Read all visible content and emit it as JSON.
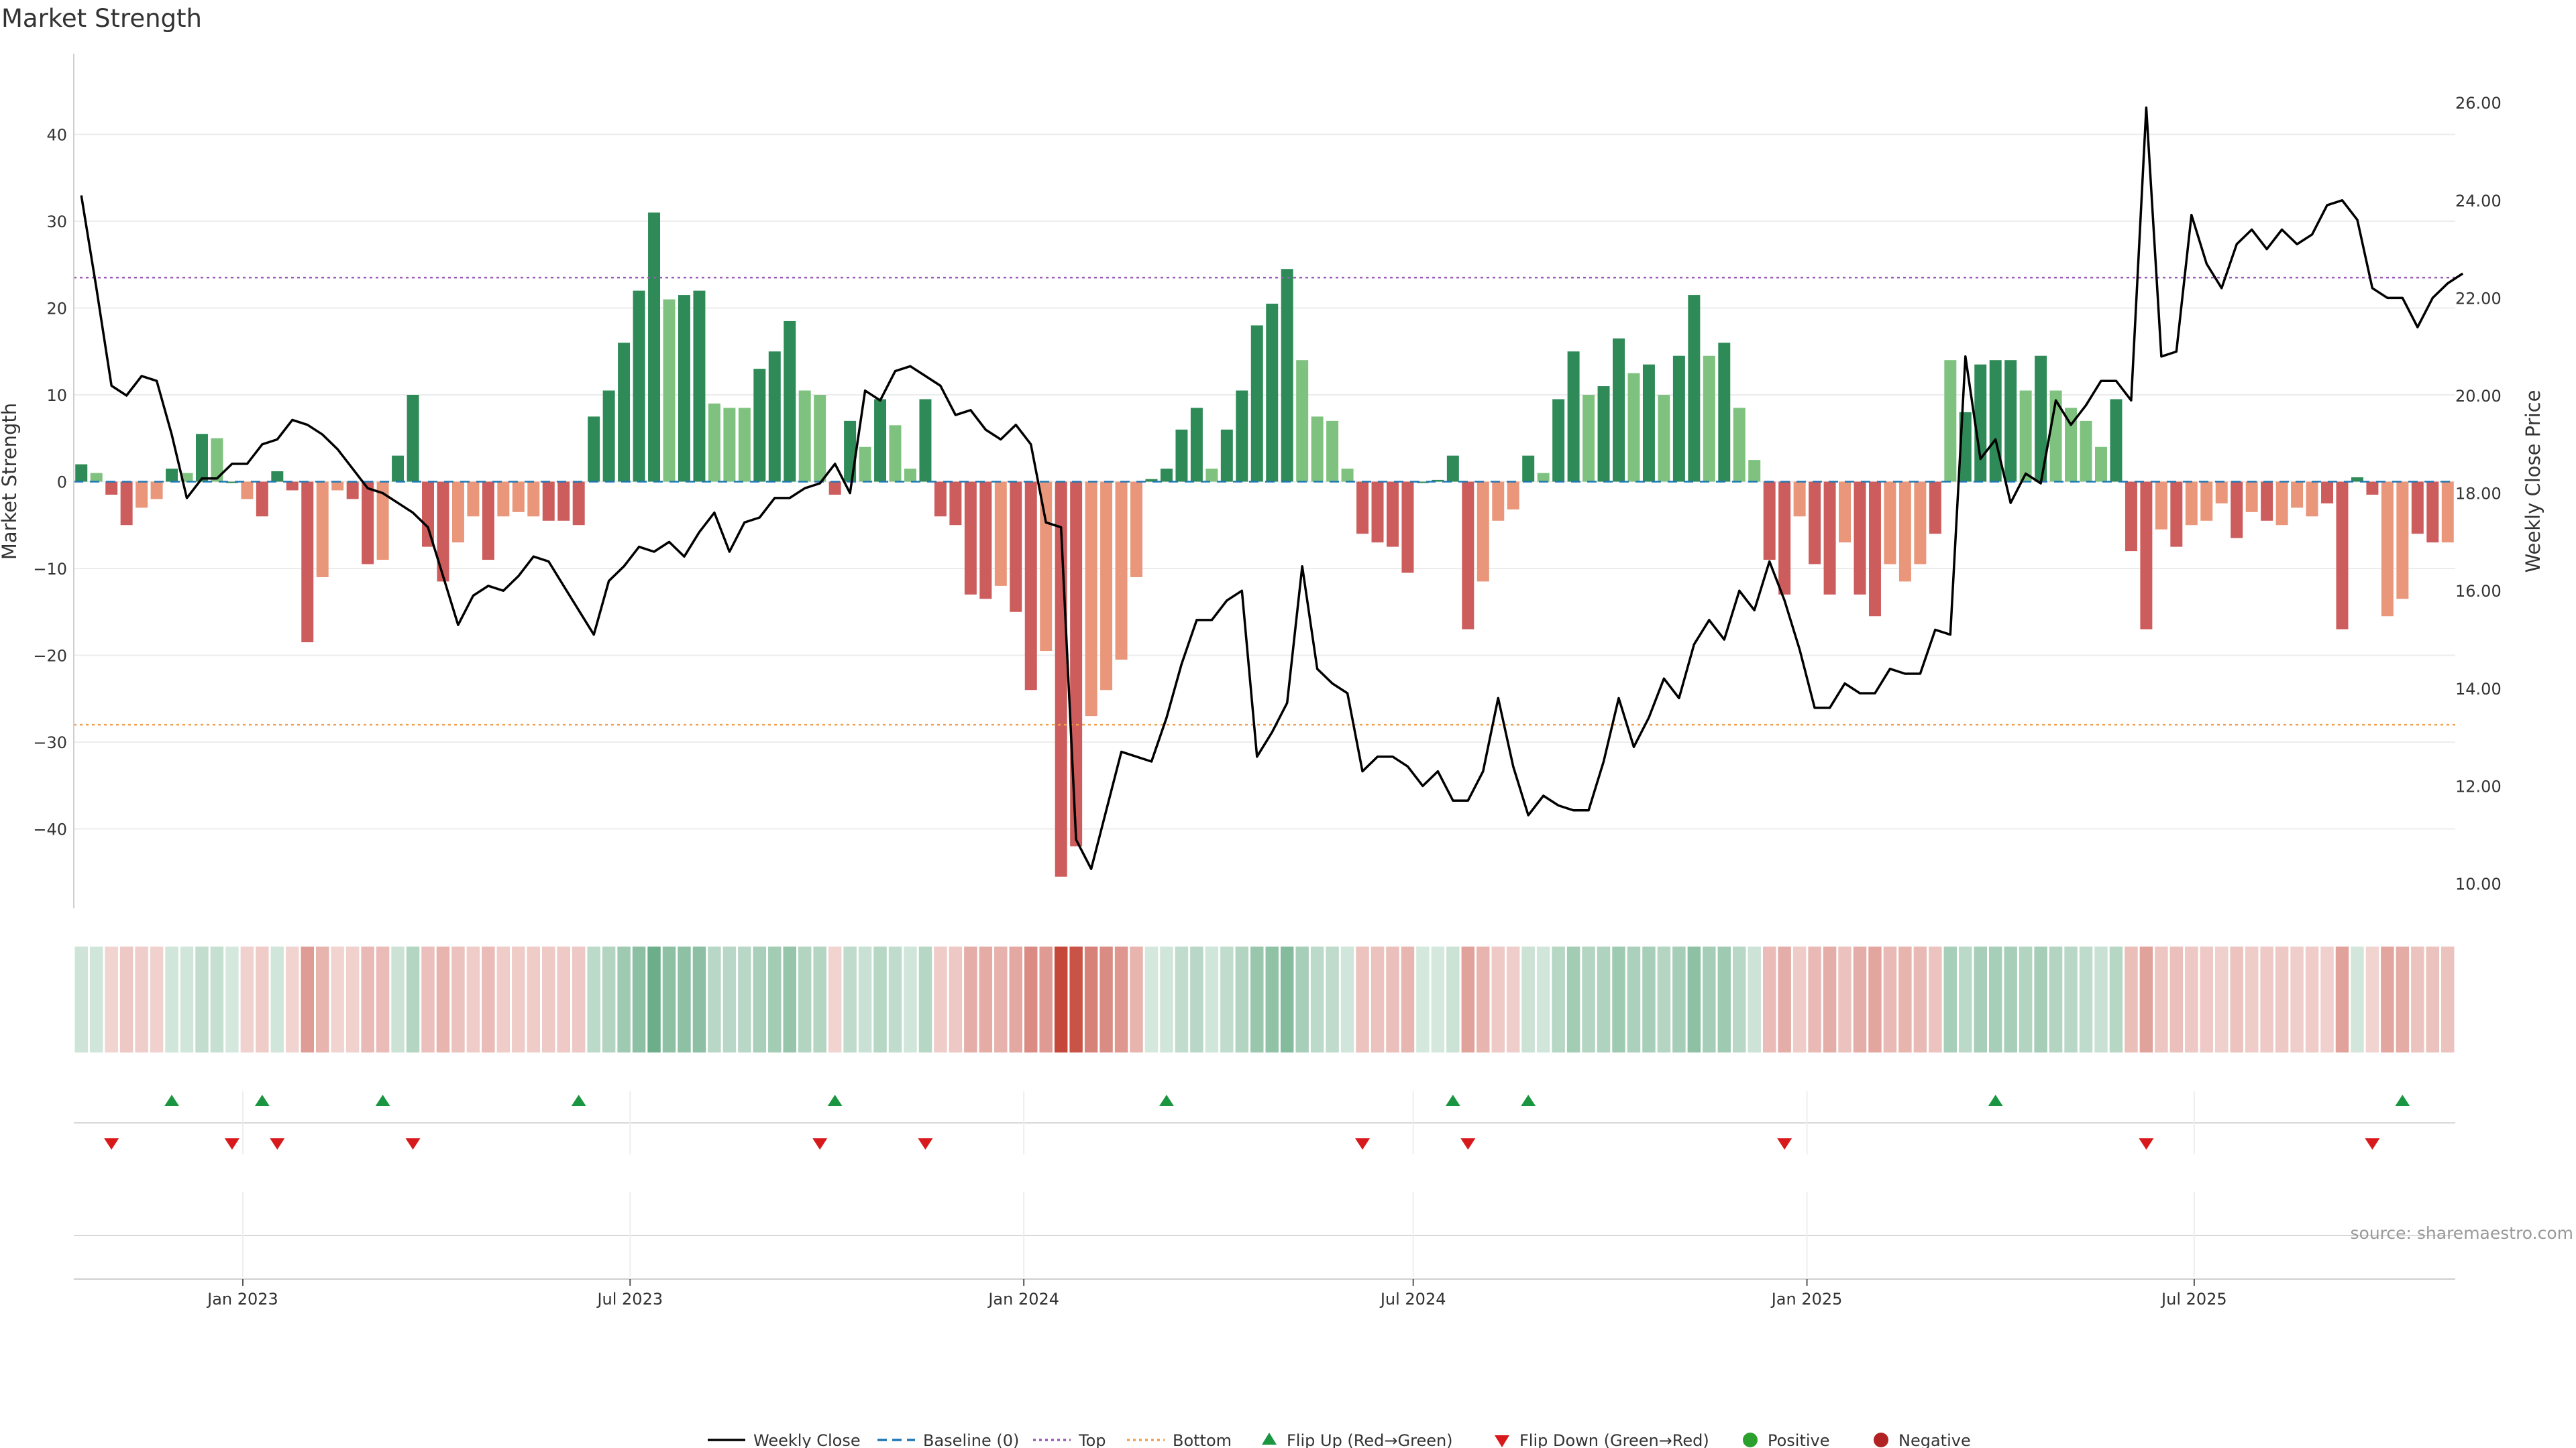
{
  "chart_data": {
    "type": "bar",
    "title": "Market Strength",
    "ylabel": "Market Strength",
    "y2label": "Weekly Close Price",
    "ylim": [
      -50,
      47
    ],
    "y2lim": [
      9.5,
      26.8
    ],
    "yticks": [
      -40,
      -30,
      -20,
      -10,
      0,
      10,
      20,
      30,
      40
    ],
    "y2ticks": [
      10.0,
      12.0,
      14.0,
      16.0,
      18.0,
      20.0,
      22.0,
      24.0,
      26.0
    ],
    "x_start": "2022-10-14",
    "x_end": "2025-10-31",
    "x_ticks": [
      "2023-01-01",
      "2023-07-01",
      "2024-01-01",
      "2024-07-01",
      "2025-01-01",
      "2025-07-01"
    ],
    "x_tick_labels": [
      "Jan 2023",
      "Jul 2023",
      "Jan 2024",
      "Jul 2024",
      "Jan 2025",
      "Jul 2025"
    ],
    "top_line": 23.5,
    "bottom_line": -28,
    "colors": {
      "dark_green": "#2e8b57",
      "light_green": "#7fc27f",
      "dark_red": "#cd5c5c",
      "light_red": "#e9967a",
      "close": "#000000",
      "baseline": "#1f77b4",
      "top": "#9b59b6",
      "bottom": "#f0a050",
      "flip_up": "#1a9641",
      "flip_down": "#d7191c",
      "positive": "#2ca02c",
      "negative": "#b22222",
      "heat_green": "#2e8b57",
      "heat_red": "#c0392b"
    },
    "strength": [
      2,
      1,
      -1.5,
      -5,
      -3,
      -2,
      1.5,
      1,
      5.5,
      5,
      0,
      -2,
      -4,
      1.2,
      -1,
      -18.5,
      -11,
      -1,
      -2,
      -9.5,
      -9,
      3,
      10,
      -7.5,
      -11.5,
      -7,
      -4,
      -9,
      -4,
      -3.5,
      -4,
      -4.5,
      -4.5,
      -5,
      7.5,
      10.5,
      16,
      22,
      31,
      21,
      21.5,
      22,
      9,
      8.5,
      8.5,
      13,
      15,
      18.5,
      10.5,
      10,
      -1.5,
      7,
      4,
      9.5,
      6.5,
      1.5,
      9.5,
      -4,
      -5,
      -13,
      -13.5,
      -12,
      -15,
      -24,
      -19.5,
      -45.5,
      -42,
      -27,
      -24,
      -20.5,
      -11,
      0.3,
      1.5,
      6,
      8.5,
      1.5,
      6,
      10.5,
      18,
      20.5,
      24.5,
      14,
      7.5,
      7,
      1.5,
      -6,
      -7,
      -7.5,
      -10.5,
      0,
      0.2,
      3,
      -17,
      -11.5,
      -4.5,
      -3.2,
      3,
      1,
      9.5,
      15,
      10,
      11,
      16.5,
      12.5,
      13.5,
      10,
      14.5,
      21.5,
      14.5,
      16,
      8.5,
      2.5,
      -9,
      -13,
      -4,
      -9.5,
      -13,
      -7,
      -13,
      -15.5,
      -9.5,
      -11.5,
      -9.5,
      -6,
      14,
      8,
      13.5,
      14,
      14,
      10.5,
      14.5,
      10.5,
      8.5,
      7,
      4,
      9.5,
      -8,
      -17,
      -5.5,
      -7.5,
      -5,
      -4.5,
      -2.5,
      -6.5,
      -3.5,
      -4.5,
      -5,
      -3,
      -4,
      -2.5,
      -17,
      0.5,
      -1.5,
      -15.5,
      -13.5,
      -6,
      -7,
      -7
    ],
    "strength_shade": [
      "dark",
      "light",
      "dark",
      "dark",
      "light",
      "light",
      "dark",
      "light",
      "dark",
      "light",
      "dark",
      "light",
      "dark",
      "dark",
      "dark",
      "dark",
      "light",
      "light",
      "dark",
      "dark",
      "light",
      "dark",
      "dark",
      "dark",
      "dark",
      "light",
      "light",
      "dark",
      "light",
      "light",
      "light",
      "dark",
      "dark",
      "dark",
      "dark",
      "dark",
      "dark",
      "dark",
      "dark",
      "light",
      "dark",
      "dark",
      "light",
      "light",
      "light",
      "dark",
      "dark",
      "dark",
      "light",
      "light",
      "dark",
      "dark",
      "light",
      "dark",
      "light",
      "light",
      "dark",
      "dark",
      "dark",
      "dark",
      "dark",
      "light",
      "dark",
      "dark",
      "light",
      "dark",
      "dark",
      "light",
      "light",
      "light",
      "light",
      "dark",
      "dark",
      "dark",
      "dark",
      "light",
      "dark",
      "dark",
      "dark",
      "dark",
      "dark",
      "light",
      "light",
      "light",
      "light",
      "dark",
      "dark",
      "dark",
      "dark",
      "dark",
      "dark",
      "dark",
      "dark",
      "light",
      "light",
      "light",
      "dark",
      "light",
      "dark",
      "dark",
      "light",
      "dark",
      "dark",
      "light",
      "dark",
      "light",
      "dark",
      "dark",
      "light",
      "dark",
      "light",
      "light",
      "dark",
      "dark",
      "light",
      "dark",
      "dark",
      "light",
      "dark",
      "dark",
      "light",
      "light",
      "light",
      "dark",
      "light",
      "dark",
      "dark",
      "dark",
      "dark",
      "light",
      "dark",
      "light",
      "light",
      "light",
      "light",
      "dark",
      "dark",
      "dark",
      "light",
      "dark",
      "light",
      "light",
      "light",
      "dark",
      "light",
      "dark",
      "light",
      "light",
      "light",
      "dark",
      "dark",
      "dark",
      "dark",
      "light",
      "light",
      "dark",
      "dark"
    ],
    "close": [
      24.1,
      22.2,
      20.2,
      20.0,
      20.4,
      20.3,
      19.2,
      17.9,
      18.3,
      18.3,
      18.6,
      18.6,
      19.0,
      19.1,
      19.5,
      19.4,
      19.2,
      18.9,
      18.5,
      18.1,
      18.0,
      17.8,
      17.6,
      17.3,
      16.3,
      15.3,
      15.9,
      16.1,
      16.0,
      16.3,
      16.7,
      16.6,
      16.1,
      15.6,
      15.1,
      16.2,
      16.5,
      16.9,
      16.8,
      17.0,
      16.7,
      17.2,
      17.6,
      16.8,
      17.4,
      17.5,
      17.9,
      17.9,
      18.1,
      18.2,
      18.6,
      18.0,
      20.1,
      19.9,
      20.5,
      20.6,
      20.4,
      20.2,
      19.6,
      19.7,
      19.3,
      19.1,
      19.4,
      19.0,
      17.4,
      17.3,
      10.9,
      10.3,
      11.5,
      12.7,
      12.6,
      12.5,
      13.4,
      14.5,
      15.4,
      15.4,
      15.8,
      16.0,
      12.6,
      13.1,
      13.7,
      16.5,
      14.4,
      14.1,
      13.9,
      12.3,
      12.6,
      12.6,
      12.4,
      12.0,
      12.3,
      11.7,
      11.7,
      12.3,
      13.8,
      12.4,
      11.4,
      11.8,
      11.6,
      11.5,
      11.5,
      12.5,
      13.8,
      12.8,
      13.4,
      14.2,
      13.8,
      14.9,
      15.4,
      15.0,
      16.0,
      15.6,
      16.6,
      15.8,
      14.8,
      13.6,
      13.6,
      14.1,
      13.9,
      13.9,
      14.4,
      14.3,
      14.3,
      15.2,
      15.1,
      20.8,
      18.7,
      19.1,
      17.8,
      18.4,
      18.2,
      19.9,
      19.4,
      19.8,
      20.3,
      20.3,
      19.9,
      25.9,
      20.8,
      20.9,
      23.7,
      22.7,
      22.2,
      23.1,
      23.4,
      23.0,
      23.4,
      23.1,
      23.3,
      23.9,
      24.0,
      23.6,
      22.2,
      22.0,
      22.0,
      21.4,
      22.0,
      22.3,
      22.5
    ],
    "flip_up_idx": [
      6,
      12,
      20,
      33,
      50,
      72,
      91,
      96,
      127,
      154
    ],
    "flip_down_idx": [
      2,
      10,
      13,
      22,
      49,
      56,
      85,
      92,
      113,
      137,
      152
    ],
    "legend": [
      "Weekly Close",
      "Baseline (0)",
      "Top",
      "Bottom",
      "Flip Up (Red→Green)",
      "Flip Down (Green→Red)",
      "Positive",
      "Negative"
    ]
  },
  "source_text": "source: sharemaestro.com"
}
